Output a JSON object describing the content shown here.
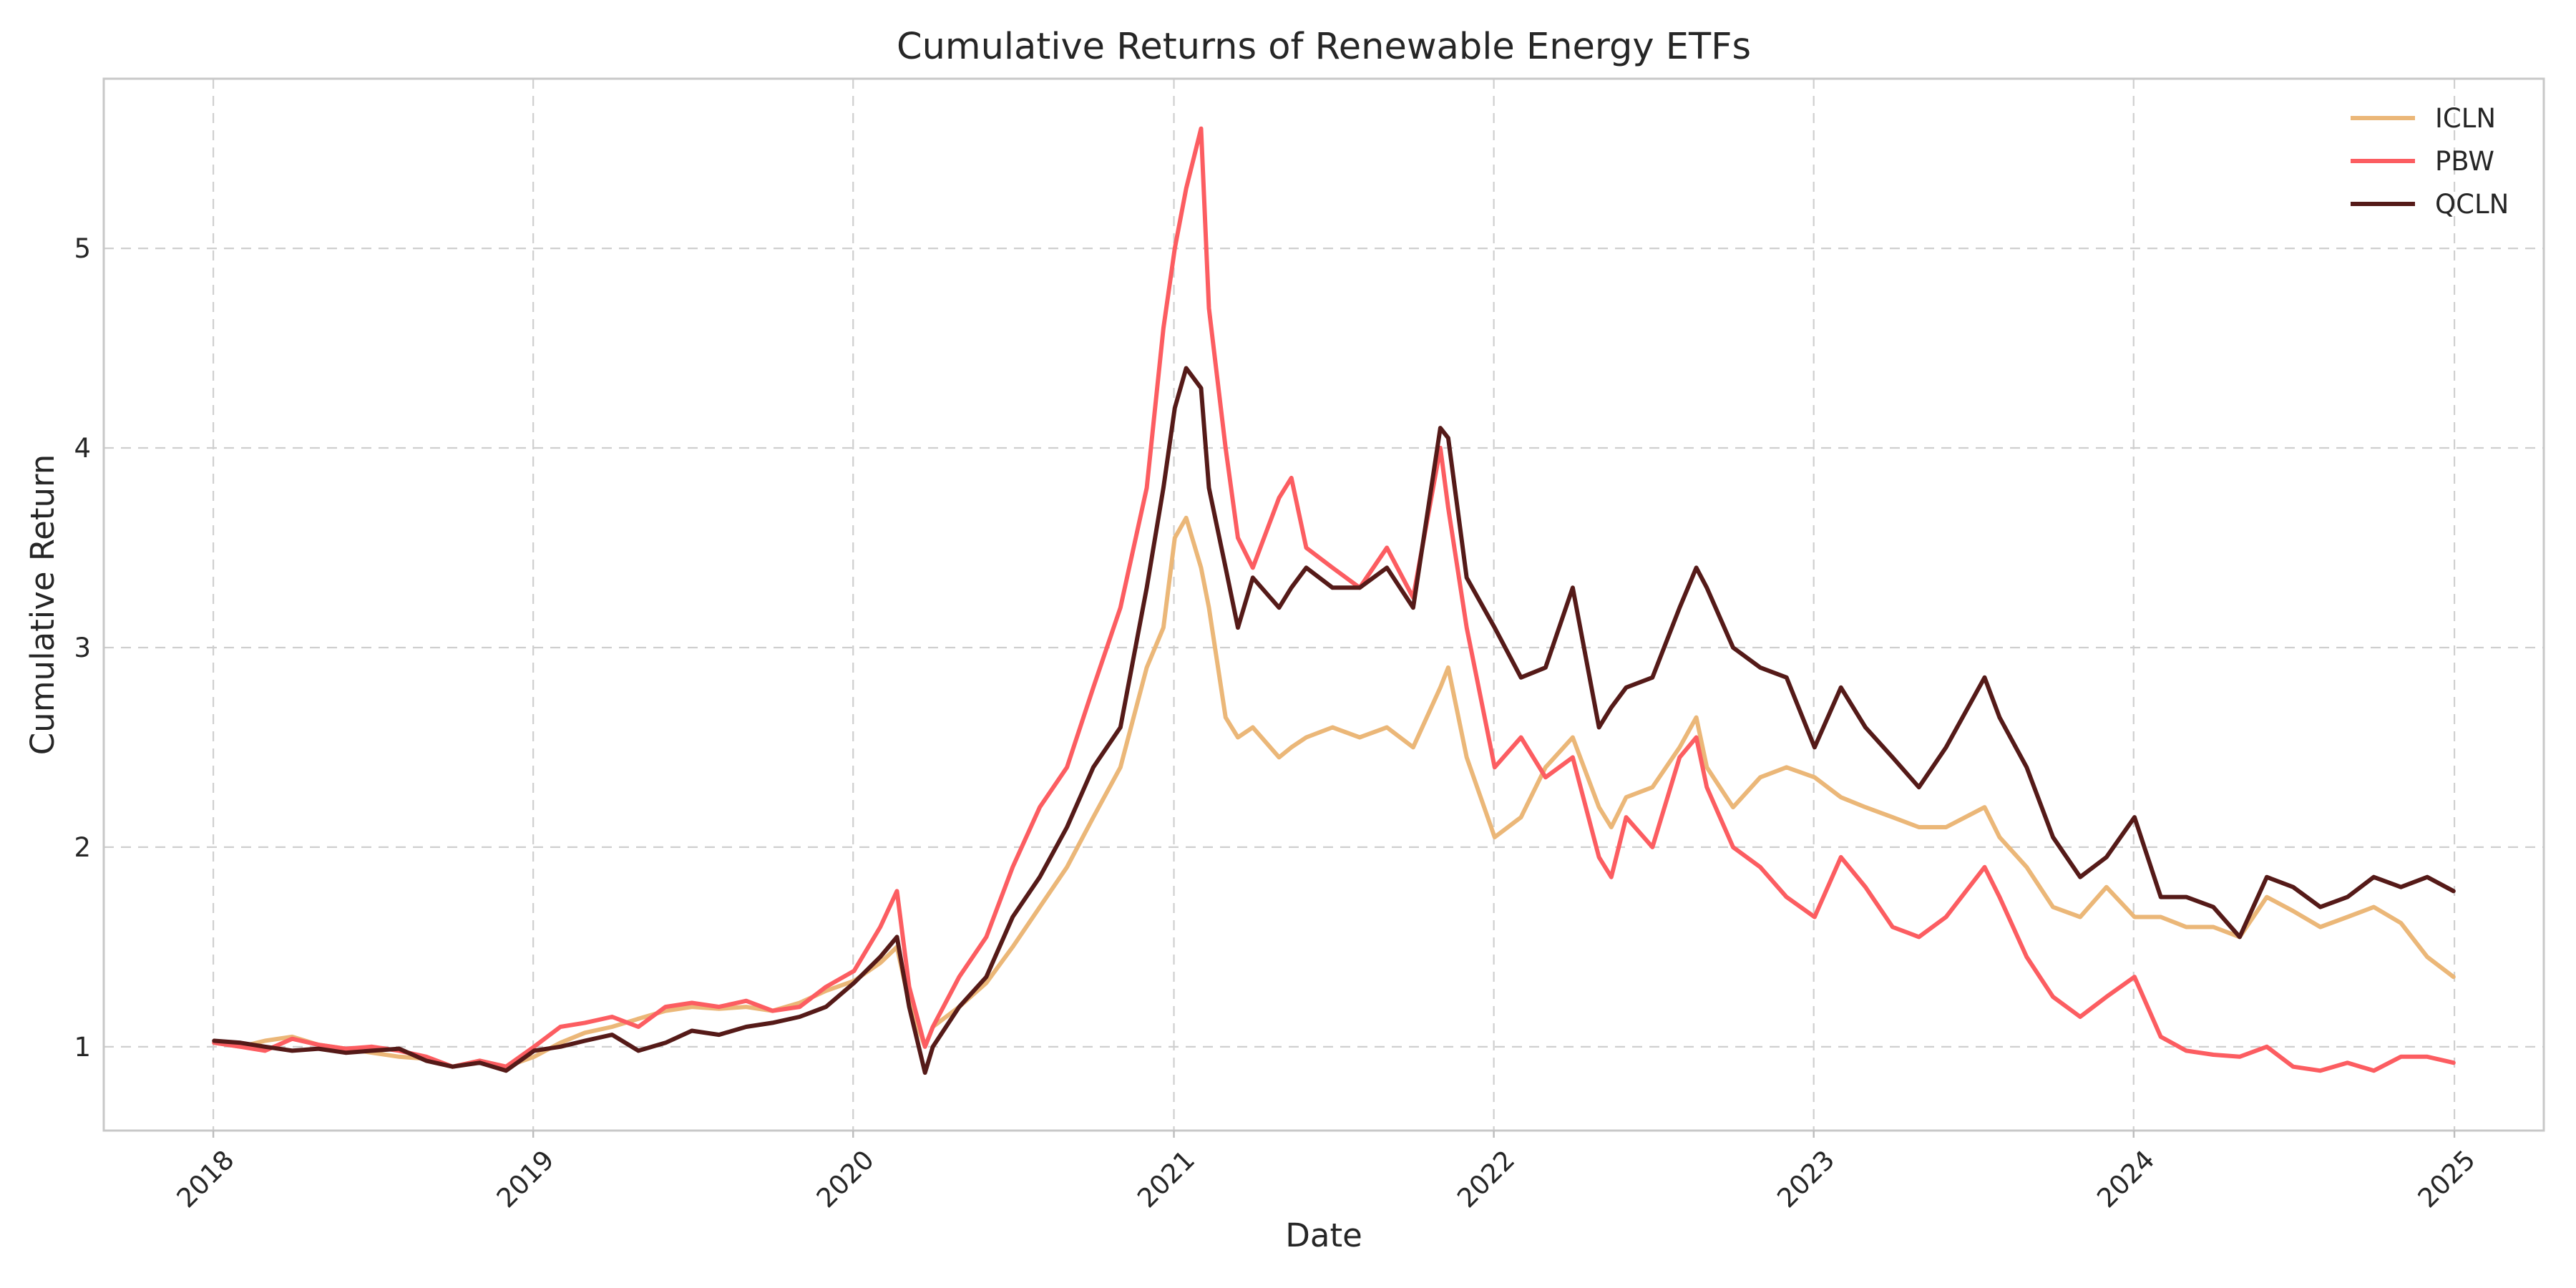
{
  "chart_data": {
    "type": "line",
    "title": "Cumulative Returns of Renewable Energy ETFs",
    "xlabel": "Date",
    "ylabel": "Cumulative Return",
    "x_ticks": [
      "2018",
      "2019",
      "2020",
      "2021",
      "2022",
      "2023",
      "2024",
      "2025"
    ],
    "y_ticks": [
      1,
      2,
      3,
      4,
      5
    ],
    "xlim": [
      "2017-08-29",
      "2025-04-13"
    ],
    "ylim": [
      0.58,
      5.85
    ],
    "grid": true,
    "legend_position": "top-right",
    "x": [
      "2018-01-02",
      "2018-02-01",
      "2018-03-01",
      "2018-04-01",
      "2018-05-01",
      "2018-06-01",
      "2018-07-01",
      "2018-08-01",
      "2018-09-01",
      "2018-10-01",
      "2018-11-01",
      "2018-12-01",
      "2019-01-02",
      "2019-02-01",
      "2019-03-01",
      "2019-04-01",
      "2019-05-01",
      "2019-06-01",
      "2019-07-01",
      "2019-08-01",
      "2019-09-01",
      "2019-10-01",
      "2019-11-01",
      "2019-12-01",
      "2020-01-02",
      "2020-02-01",
      "2020-02-20",
      "2020-03-05",
      "2020-03-23",
      "2020-04-01",
      "2020-05-01",
      "2020-06-01",
      "2020-07-01",
      "2020-08-01",
      "2020-09-01",
      "2020-10-01",
      "2020-11-01",
      "2020-12-01",
      "2020-12-20",
      "2021-01-02",
      "2021-01-15",
      "2021-02-01",
      "2021-02-10",
      "2021-03-01",
      "2021-03-15",
      "2021-04-01",
      "2021-05-01",
      "2021-05-15",
      "2021-06-01",
      "2021-07-01",
      "2021-08-01",
      "2021-09-01",
      "2021-10-01",
      "2021-11-01",
      "2021-11-10",
      "2021-12-01",
      "2022-01-02",
      "2022-02-01",
      "2022-03-01",
      "2022-04-01",
      "2022-05-01",
      "2022-05-15",
      "2022-06-01",
      "2022-07-01",
      "2022-08-01",
      "2022-08-20",
      "2022-09-01",
      "2022-10-01",
      "2022-11-01",
      "2022-12-01",
      "2023-01-02",
      "2023-02-01",
      "2023-03-01",
      "2023-04-01",
      "2023-05-01",
      "2023-06-01",
      "2023-07-15",
      "2023-08-01",
      "2023-09-01",
      "2023-10-01",
      "2023-11-01",
      "2023-12-01",
      "2024-01-02",
      "2024-02-01",
      "2024-03-01",
      "2024-04-01",
      "2024-05-01",
      "2024-06-01",
      "2024-07-01",
      "2024-08-01",
      "2024-09-01",
      "2024-10-01",
      "2024-11-01",
      "2024-12-01",
      "2024-12-31"
    ],
    "series": [
      {
        "name": "ICLN",
        "color": "#EBB778",
        "values": [
          1.02,
          1.0,
          1.03,
          1.05,
          1.01,
          0.99,
          0.97,
          0.95,
          0.94,
          0.9,
          0.93,
          0.9,
          0.95,
          1.02,
          1.07,
          1.1,
          1.14,
          1.18,
          1.2,
          1.19,
          1.2,
          1.18,
          1.22,
          1.28,
          1.33,
          1.42,
          1.5,
          1.22,
          1.0,
          1.1,
          1.2,
          1.32,
          1.5,
          1.7,
          1.9,
          2.15,
          2.4,
          2.9,
          3.1,
          3.55,
          3.65,
          3.4,
          3.2,
          2.65,
          2.55,
          2.6,
          2.45,
          2.5,
          2.55,
          2.6,
          2.55,
          2.6,
          2.5,
          2.8,
          2.9,
          2.45,
          2.05,
          2.15,
          2.4,
          2.55,
          2.2,
          2.1,
          2.25,
          2.3,
          2.5,
          2.65,
          2.4,
          2.2,
          2.35,
          2.4,
          2.35,
          2.25,
          2.2,
          2.15,
          2.1,
          2.1,
          2.2,
          2.05,
          1.9,
          1.7,
          1.65,
          1.8,
          1.65,
          1.65,
          1.6,
          1.6,
          1.55,
          1.75,
          1.68,
          1.6,
          1.65,
          1.7,
          1.62,
          1.45,
          1.35
        ]
      },
      {
        "name": "PBW",
        "color": "#FC5D61",
        "values": [
          1.02,
          1.0,
          0.98,
          1.04,
          1.01,
          0.99,
          1.0,
          0.98,
          0.95,
          0.9,
          0.93,
          0.9,
          1.0,
          1.1,
          1.12,
          1.15,
          1.1,
          1.2,
          1.22,
          1.2,
          1.23,
          1.18,
          1.2,
          1.3,
          1.38,
          1.6,
          1.78,
          1.3,
          1.0,
          1.1,
          1.35,
          1.55,
          1.9,
          2.2,
          2.4,
          2.8,
          3.2,
          3.8,
          4.6,
          5.0,
          5.3,
          5.6,
          4.7,
          4.0,
          3.55,
          3.4,
          3.75,
          3.85,
          3.5,
          3.4,
          3.3,
          3.5,
          3.25,
          4.0,
          3.7,
          3.1,
          2.4,
          2.55,
          2.35,
          2.45,
          1.95,
          1.85,
          2.15,
          2.0,
          2.45,
          2.55,
          2.3,
          2.0,
          1.9,
          1.75,
          1.65,
          1.95,
          1.8,
          1.6,
          1.55,
          1.65,
          1.9,
          1.75,
          1.45,
          1.25,
          1.15,
          1.25,
          1.35,
          1.05,
          0.98,
          0.96,
          0.95,
          1.0,
          0.9,
          0.88,
          0.92,
          0.88,
          0.95,
          0.95,
          0.92
        ]
      },
      {
        "name": "QCLN",
        "color": "#551A18",
        "values": [
          1.03,
          1.02,
          1.0,
          0.98,
          0.99,
          0.97,
          0.98,
          0.99,
          0.93,
          0.9,
          0.92,
          0.88,
          0.98,
          1.0,
          1.03,
          1.06,
          0.98,
          1.02,
          1.08,
          1.06,
          1.1,
          1.12,
          1.15,
          1.2,
          1.32,
          1.45,
          1.55,
          1.2,
          0.87,
          1.0,
          1.2,
          1.35,
          1.65,
          1.85,
          2.1,
          2.4,
          2.6,
          3.3,
          3.8,
          4.2,
          4.4,
          4.3,
          3.8,
          3.4,
          3.1,
          3.35,
          3.2,
          3.3,
          3.4,
          3.3,
          3.3,
          3.4,
          3.2,
          4.1,
          4.05,
          3.35,
          3.1,
          2.85,
          2.9,
          3.3,
          2.6,
          2.7,
          2.8,
          2.85,
          3.2,
          3.4,
          3.3,
          3.0,
          2.9,
          2.85,
          2.5,
          2.8,
          2.6,
          2.45,
          2.3,
          2.5,
          2.85,
          2.65,
          2.4,
          2.05,
          1.85,
          1.95,
          2.15,
          1.75,
          1.75,
          1.7,
          1.55,
          1.85,
          1.8,
          1.7,
          1.75,
          1.85,
          1.8,
          1.85,
          1.78
        ]
      }
    ]
  }
}
